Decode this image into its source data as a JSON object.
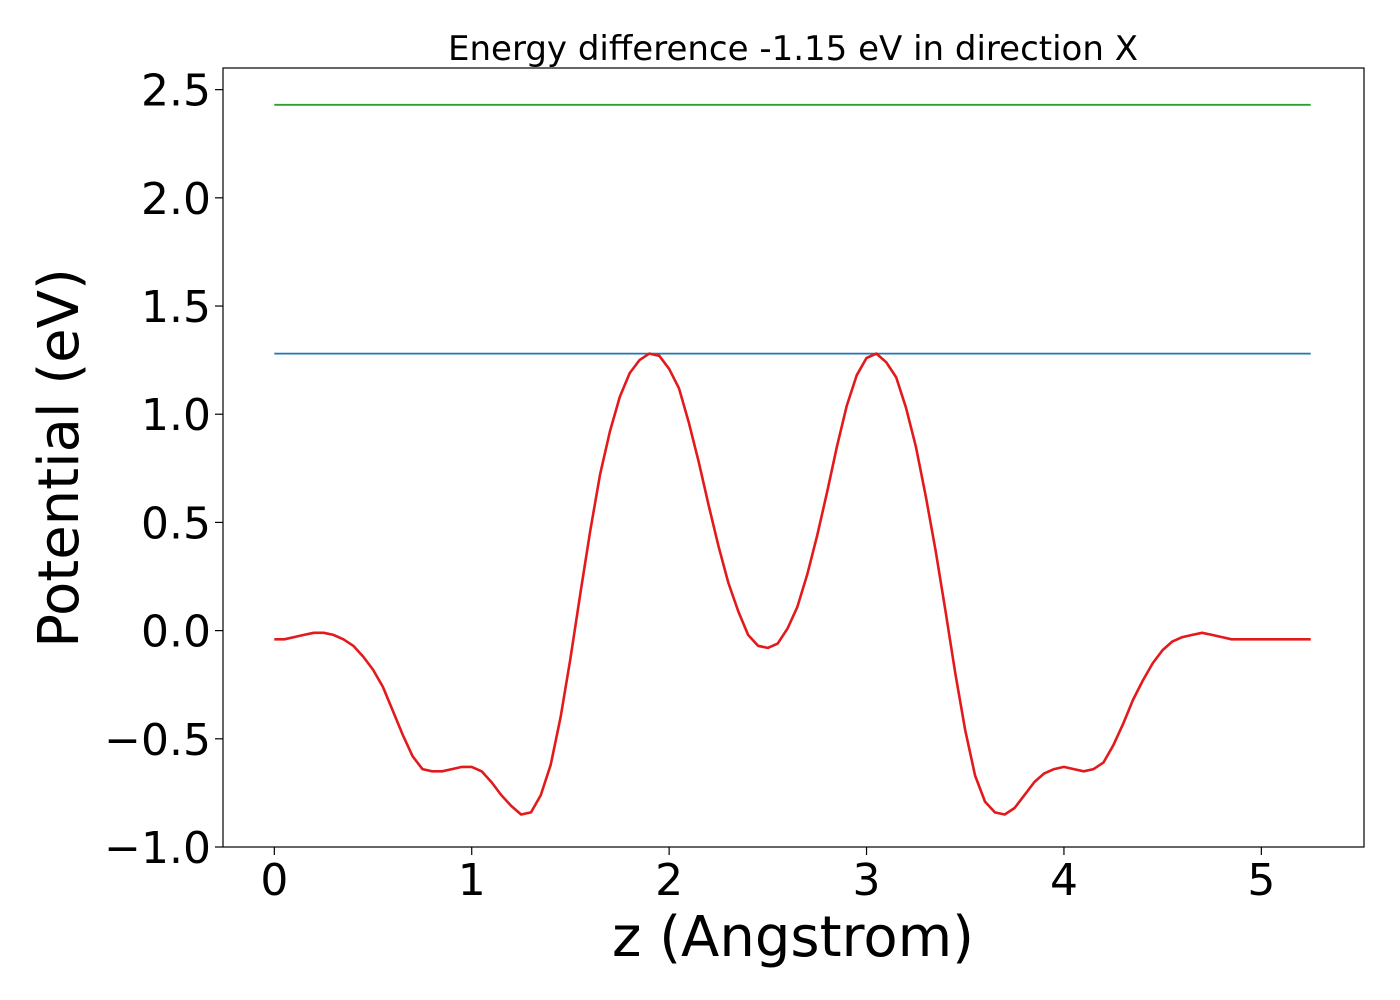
{
  "chart_data": {
    "type": "line",
    "title": "Energy difference -1.15 eV in direction X",
    "xlabel": "z (Angstrom)",
    "ylabel": "Potential (eV)",
    "xlim": [
      -0.26,
      5.52
    ],
    "ylim": [
      -1.0,
      2.6
    ],
    "xticks": [
      0,
      1,
      2,
      3,
      4,
      5
    ],
    "xtick_labels": [
      "0",
      "1",
      "2",
      "3",
      "4",
      "5"
    ],
    "yticks": [
      -1.0,
      -0.5,
      0.0,
      0.5,
      1.0,
      1.5,
      2.0,
      2.5
    ],
    "ytick_labels": [
      "−1.0",
      "−0.5",
      "0.0",
      "0.5",
      "1.0",
      "1.5",
      "2.0",
      "2.5"
    ],
    "grid": false,
    "series": [
      {
        "color": "#2ca02c",
        "x": [
          0,
          5.25
        ],
        "y": [
          2.43,
          2.43
        ]
      },
      {
        "color": "#1f77b4",
        "x": [
          0,
          5.25
        ],
        "y": [
          1.28,
          1.28
        ]
      },
      {
        "color": "#e31a1c",
        "x": [
          0.0,
          0.05,
          0.1,
          0.15,
          0.2,
          0.25,
          0.3,
          0.35,
          0.4,
          0.45,
          0.5,
          0.55,
          0.6,
          0.65,
          0.7,
          0.75,
          0.8,
          0.85,
          0.9,
          0.95,
          1.0,
          1.05,
          1.1,
          1.15,
          1.2,
          1.25,
          1.3,
          1.35,
          1.4,
          1.45,
          1.5,
          1.55,
          1.6,
          1.65,
          1.7,
          1.75,
          1.8,
          1.85,
          1.9,
          1.95,
          2.0,
          2.05,
          2.1,
          2.15,
          2.2,
          2.25,
          2.3,
          2.35,
          2.4,
          2.45,
          2.5,
          2.55,
          2.6,
          2.65,
          2.7,
          2.75,
          2.8,
          2.85,
          2.9,
          2.95,
          3.0,
          3.05,
          3.1,
          3.15,
          3.2,
          3.25,
          3.3,
          3.35,
          3.4,
          3.45,
          3.5,
          3.55,
          3.6,
          3.65,
          3.7,
          3.75,
          3.8,
          3.85,
          3.9,
          3.95,
          4.0,
          4.05,
          4.1,
          4.15,
          4.2,
          4.25,
          4.3,
          4.35,
          4.4,
          4.45,
          4.5,
          4.55,
          4.6,
          4.65,
          4.7,
          4.75,
          4.8,
          4.85,
          4.9,
          4.95,
          5.0,
          5.05,
          5.1,
          5.15,
          5.2,
          5.25
        ],
        "y": [
          -0.04,
          -0.04,
          -0.03,
          -0.02,
          -0.01,
          -0.01,
          -0.02,
          -0.04,
          -0.07,
          -0.12,
          -0.18,
          -0.26,
          -0.37,
          -0.48,
          -0.58,
          -0.64,
          -0.65,
          -0.65,
          -0.64,
          -0.63,
          -0.63,
          -0.65,
          -0.7,
          -0.76,
          -0.81,
          -0.85,
          -0.84,
          -0.76,
          -0.62,
          -0.4,
          -0.13,
          0.17,
          0.46,
          0.72,
          0.92,
          1.08,
          1.19,
          1.25,
          1.28,
          1.27,
          1.21,
          1.12,
          0.96,
          0.78,
          0.58,
          0.39,
          0.22,
          0.09,
          -0.02,
          -0.07,
          -0.08,
          -0.06,
          0.01,
          0.11,
          0.26,
          0.44,
          0.64,
          0.85,
          1.04,
          1.18,
          1.26,
          1.28,
          1.24,
          1.17,
          1.03,
          0.85,
          0.62,
          0.37,
          0.09,
          -0.2,
          -0.46,
          -0.67,
          -0.79,
          -0.84,
          -0.85,
          -0.82,
          -0.76,
          -0.7,
          -0.66,
          -0.64,
          -0.63,
          -0.64,
          -0.65,
          -0.64,
          -0.61,
          -0.53,
          -0.43,
          -0.32,
          -0.23,
          -0.15,
          -0.09,
          -0.05,
          -0.03,
          -0.02,
          -0.01,
          -0.02,
          -0.03,
          -0.04,
          -0.04,
          -0.04,
          -0.04,
          -0.04,
          -0.04,
          -0.04,
          -0.04,
          -0.04
        ]
      }
    ]
  }
}
